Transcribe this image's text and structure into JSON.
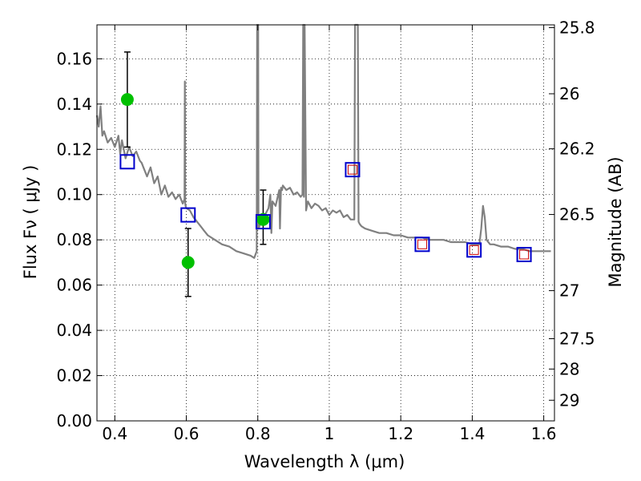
{
  "chart_data": {
    "type": "scatter",
    "title": "",
    "xlabel": "Wavelength  λ (μm)",
    "ylabel": "Flux  Fν  ( μJy )",
    "y2label": "Magnitude (AB)",
    "xlim": [
      0.35,
      1.63
    ],
    "ylim": [
      0.0,
      0.175
    ],
    "grid": true,
    "colors": {
      "model": "#808080",
      "observed": "#00c000",
      "model_photometry": "#0000cc",
      "inner_marker": "#cc0000",
      "error_bar": "#000000"
    },
    "x_ticks": [
      0.4,
      0.6,
      0.8,
      1.0,
      1.2,
      1.4,
      1.6
    ],
    "x_tick_labels": [
      "0.4",
      "0.6",
      "0.8",
      "1",
      "1.2",
      "1.4",
      "1.6"
    ],
    "y_ticks": [
      0.0,
      0.02,
      0.04,
      0.06,
      0.08,
      0.1,
      0.12,
      0.14,
      0.16
    ],
    "y_tick_labels": [
      "0.00",
      "0.02",
      "0.04",
      "0.06",
      "0.08",
      "0.10",
      "0.12",
      "0.14",
      "0.16"
    ],
    "y2_ticks": [
      {
        "mag": 25.8,
        "label": "25.8"
      },
      {
        "mag": 26.0,
        "label": "26"
      },
      {
        "mag": 26.2,
        "label": "26.2"
      },
      {
        "mag": 26.5,
        "label": "26.5"
      },
      {
        "mag": 27.0,
        "label": "27"
      },
      {
        "mag": 27.5,
        "label": "27.5"
      },
      {
        "mag": 28.0,
        "label": "28"
      },
      {
        "mag": 29.0,
        "label": "29"
      }
    ],
    "series": [
      {
        "style": "line",
        "x": [
          0.35,
          0.355,
          0.36,
          0.365,
          0.37,
          0.38,
          0.39,
          0.4,
          0.41,
          0.415,
          0.42,
          0.43,
          0.44,
          0.45,
          0.46,
          0.47,
          0.475,
          0.48,
          0.49,
          0.5,
          0.51,
          0.52,
          0.53,
          0.54,
          0.55,
          0.56,
          0.57,
          0.58,
          0.59,
          0.595,
          0.596,
          0.597,
          0.598,
          0.6,
          0.61,
          0.62,
          0.63,
          0.64,
          0.65,
          0.66,
          0.68,
          0.7,
          0.72,
          0.74,
          0.76,
          0.78,
          0.79,
          0.797,
          0.798,
          0.799,
          0.8,
          0.801,
          0.802,
          0.81,
          0.82,
          0.83,
          0.835,
          0.838,
          0.841,
          0.85,
          0.86,
          0.862,
          0.865,
          0.868,
          0.87,
          0.88,
          0.89,
          0.9,
          0.91,
          0.92,
          0.925,
          0.927,
          0.929,
          0.931,
          0.935,
          0.94,
          0.95,
          0.96,
          0.97,
          0.98,
          0.99,
          1.0,
          1.01,
          1.02,
          1.03,
          1.04,
          1.05,
          1.06,
          1.07,
          1.072,
          1.074,
          1.08,
          1.082,
          1.085,
          1.09,
          1.1,
          1.12,
          1.14,
          1.16,
          1.18,
          1.2,
          1.22,
          1.24,
          1.26,
          1.28,
          1.3,
          1.32,
          1.34,
          1.36,
          1.38,
          1.4,
          1.42,
          1.425,
          1.43,
          1.435,
          1.44,
          1.45,
          1.46,
          1.48,
          1.5,
          1.52,
          1.54,
          1.56,
          1.58,
          1.6,
          1.62
        ],
        "y": [
          0.135,
          0.13,
          0.139,
          0.126,
          0.128,
          0.123,
          0.125,
          0.121,
          0.126,
          0.118,
          0.124,
          0.116,
          0.121,
          0.117,
          0.119,
          0.115,
          0.114,
          0.112,
          0.108,
          0.112,
          0.105,
          0.108,
          0.1,
          0.104,
          0.099,
          0.101,
          0.098,
          0.1,
          0.096,
          0.098,
          0.15,
          0.096,
          0.095,
          0.094,
          0.093,
          0.09,
          0.088,
          0.086,
          0.084,
          0.082,
          0.08,
          0.078,
          0.077,
          0.075,
          0.074,
          0.073,
          0.072,
          0.075,
          0.175,
          0.09,
          0.088,
          0.175,
          0.085,
          0.088,
          0.091,
          0.094,
          0.1,
          0.083,
          0.097,
          0.095,
          0.102,
          0.085,
          0.103,
          0.102,
          0.104,
          0.102,
          0.103,
          0.1,
          0.101,
          0.099,
          0.1,
          0.175,
          0.099,
          0.175,
          0.093,
          0.097,
          0.094,
          0.096,
          0.095,
          0.093,
          0.094,
          0.091,
          0.093,
          0.092,
          0.093,
          0.09,
          0.091,
          0.089,
          0.089,
          0.175,
          0.175,
          0.175,
          0.088,
          0.087,
          0.086,
          0.085,
          0.084,
          0.083,
          0.083,
          0.082,
          0.082,
          0.081,
          0.081,
          0.081,
          0.08,
          0.08,
          0.08,
          0.079,
          0.079,
          0.079,
          0.078,
          0.078,
          0.085,
          0.095,
          0.09,
          0.08,
          0.078,
          0.078,
          0.077,
          0.077,
          0.076,
          0.076,
          0.075,
          0.075,
          0.075,
          0.075
        ]
      },
      {
        "style": "error_points",
        "x": [
          0.435,
          0.605,
          0.815
        ],
        "y": [
          0.142,
          0.07,
          0.089
        ],
        "yerr_low": [
          0.121,
          0.055,
          0.078
        ],
        "yerr_high": [
          0.163,
          0.085,
          0.102
        ]
      },
      {
        "style": "open_square",
        "x": [
          0.435,
          0.605,
          0.815,
          1.065,
          1.26,
          1.405,
          1.545
        ],
        "y": [
          0.1145,
          0.091,
          0.088,
          0.111,
          0.078,
          0.0755,
          0.0735
        ]
      },
      {
        "style": "inner_square",
        "x": [
          1.065,
          1.26,
          1.405,
          1.545
        ],
        "y": [
          0.111,
          0.078,
          0.0755,
          0.0735
        ]
      }
    ]
  }
}
